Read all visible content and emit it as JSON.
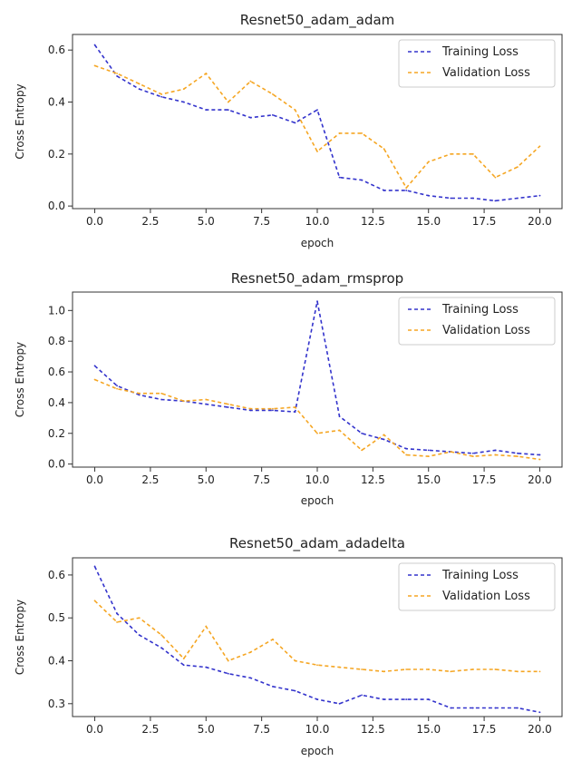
{
  "chart_data": [
    {
      "type": "line",
      "title": "Resnet50_adam_adam",
      "xlabel": "epoch",
      "ylabel": "Cross Entropy",
      "xlim": [
        -1,
        21
      ],
      "ylim": [
        -0.01,
        0.66
      ],
      "xticks": [
        "0.0",
        "2.5",
        "5.0",
        "7.5",
        "10.0",
        "12.5",
        "15.0",
        "17.5",
        "20.0"
      ],
      "yticks": [
        "0.0",
        "0.2",
        "0.4",
        "0.6"
      ],
      "legend": "top-right",
      "x": [
        0,
        1,
        2,
        3,
        4,
        5,
        6,
        7,
        8,
        9,
        10,
        11,
        12,
        13,
        14,
        15,
        16,
        17,
        18,
        19,
        20
      ],
      "series": [
        {
          "name": "Training Loss",
          "color": "#3333cc",
          "values": [
            0.62,
            0.5,
            0.45,
            0.42,
            0.4,
            0.37,
            0.37,
            0.34,
            0.35,
            0.32,
            0.37,
            0.11,
            0.1,
            0.06,
            0.06,
            0.04,
            0.03,
            0.03,
            0.02,
            0.03,
            0.04
          ]
        },
        {
          "name": "Validation Loss",
          "color": "#f5a623",
          "values": [
            0.54,
            0.51,
            0.47,
            0.43,
            0.45,
            0.51,
            0.4,
            0.48,
            0.43,
            0.37,
            0.21,
            0.28,
            0.28,
            0.22,
            0.07,
            0.17,
            0.2,
            0.2,
            0.11,
            0.15,
            0.23
          ]
        }
      ]
    },
    {
      "type": "line",
      "title": "Resnet50_adam_rmsprop",
      "xlabel": "epoch",
      "ylabel": "Cross Entropy",
      "xlim": [
        -1,
        21
      ],
      "ylim": [
        -0.02,
        1.12
      ],
      "xticks": [
        "0.0",
        "2.5",
        "5.0",
        "7.5",
        "10.0",
        "12.5",
        "15.0",
        "17.5",
        "20.0"
      ],
      "yticks": [
        "0.0",
        "0.2",
        "0.4",
        "0.6",
        "0.8",
        "1.0"
      ],
      "legend": "top-right",
      "x": [
        0,
        1,
        2,
        3,
        4,
        5,
        6,
        7,
        8,
        9,
        10,
        11,
        12,
        13,
        14,
        15,
        16,
        17,
        18,
        19,
        20
      ],
      "series": [
        {
          "name": "Training Loss",
          "color": "#3333cc",
          "values": [
            0.64,
            0.51,
            0.45,
            0.42,
            0.41,
            0.39,
            0.37,
            0.35,
            0.35,
            0.34,
            1.06,
            0.31,
            0.2,
            0.16,
            0.1,
            0.09,
            0.08,
            0.07,
            0.09,
            0.07,
            0.06
          ]
        },
        {
          "name": "Validation Loss",
          "color": "#f5a623",
          "values": [
            0.55,
            0.49,
            0.46,
            0.46,
            0.41,
            0.42,
            0.39,
            0.36,
            0.36,
            0.37,
            0.2,
            0.22,
            0.09,
            0.19,
            0.06,
            0.05,
            0.08,
            0.05,
            0.06,
            0.05,
            0.03
          ]
        }
      ]
    },
    {
      "type": "line",
      "title": "Resnet50_adam_adadelta",
      "xlabel": "epoch",
      "ylabel": "Cross Entropy",
      "xlim": [
        -1,
        21
      ],
      "ylim": [
        0.27,
        0.64
      ],
      "xticks": [
        "0.0",
        "2.5",
        "5.0",
        "7.5",
        "10.0",
        "12.5",
        "15.0",
        "17.5",
        "20.0"
      ],
      "yticks": [
        "0.3",
        "0.4",
        "0.5",
        "0.6"
      ],
      "legend": "top-right",
      "x": [
        0,
        1,
        2,
        3,
        4,
        5,
        6,
        7,
        8,
        9,
        10,
        11,
        12,
        13,
        14,
        15,
        16,
        17,
        18,
        19,
        20
      ],
      "series": [
        {
          "name": "Training Loss",
          "color": "#3333cc",
          "values": [
            0.62,
            0.51,
            0.46,
            0.43,
            0.39,
            0.385,
            0.37,
            0.36,
            0.34,
            0.33,
            0.31,
            0.3,
            0.32,
            0.31,
            0.31,
            0.31,
            0.29,
            0.29,
            0.29,
            0.29,
            0.28
          ]
        },
        {
          "name": "Validation Loss",
          "color": "#f5a623",
          "values": [
            0.54,
            0.49,
            0.5,
            0.46,
            0.405,
            0.48,
            0.4,
            0.42,
            0.45,
            0.4,
            0.39,
            0.385,
            0.38,
            0.375,
            0.38,
            0.38,
            0.375,
            0.38,
            0.38,
            0.375,
            0.375
          ]
        }
      ]
    }
  ]
}
